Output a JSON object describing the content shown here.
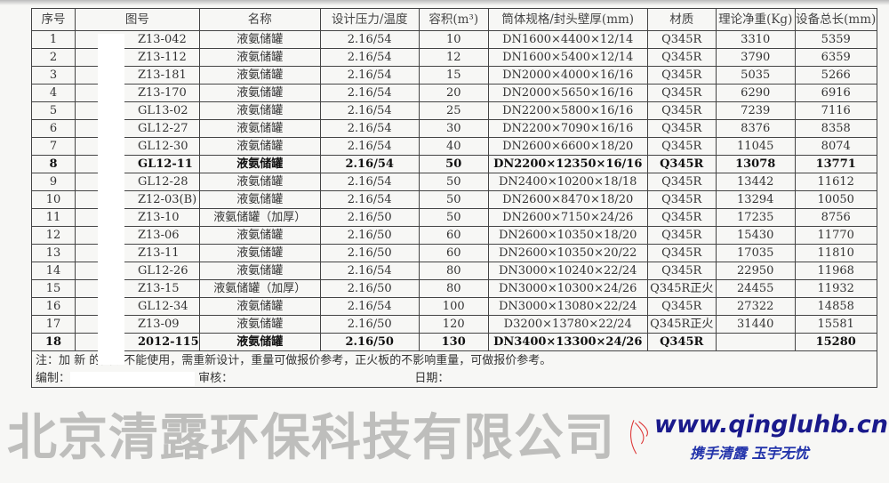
{
  "headers": [
    "序号",
    "图号",
    "名称",
    "设计压力/温度",
    "容积(m³)",
    "筒体规格/封头壁厚(mm)",
    "材质",
    "理论净重(Kg)",
    "设备总长(mm)"
  ],
  "rows": [
    [
      "1",
      "Z13-042",
      "液氨储罐",
      "2.16/54",
      "10",
      "DN1600×4400×12/14",
      "Q345R",
      "3310",
      "5359"
    ],
    [
      "2",
      "Z13-112",
      "液氨储罐",
      "2.16/54",
      "12",
      "DN1600×5400×12/14",
      "Q345R",
      "3790",
      "6359"
    ],
    [
      "3",
      "Z13-181",
      "液氨储罐",
      "2.16/54",
      "15",
      "DN2000×4000×16/16",
      "Q345R",
      "5035",
      "5266"
    ],
    [
      "4",
      "Z13-170",
      "液氨储罐",
      "2.16/54",
      "20",
      "DN2000×5650×16/16",
      "Q345R",
      "6290",
      "6916"
    ],
    [
      "5",
      "GL13-02",
      "液氨储罐",
      "2.16/54",
      "25",
      "DN2200×5800×16/16",
      "Q345R",
      "7239",
      "7116"
    ],
    [
      "6",
      "GL12-27",
      "液氨储罐",
      "2.16/54",
      "30",
      "DN2200×7090×16/16",
      "Q345R",
      "8376",
      "8358"
    ],
    [
      "7",
      "GL12-30",
      "液氨储罐",
      "2.16/54",
      "40",
      "DN2600×6600×18/20",
      "Q345R",
      "11045",
      "8074"
    ],
    [
      "8",
      "GL12-11",
      "液氨储罐",
      "2.16/54",
      "50",
      "DN2200×12350×16/16",
      "Q345R",
      "13078",
      "13771"
    ],
    [
      "9",
      "GL12-28",
      "液氨储罐",
      "2.16/54",
      "50",
      "DN2400×10200×18/18",
      "Q345R",
      "13442",
      "11612"
    ],
    [
      "10",
      "Z12-03(B)",
      "液氨储罐",
      "2.16/54",
      "50",
      "DN2600×8470×18/20",
      "Q345R",
      "13294",
      "10050"
    ],
    [
      "11",
      "Z13-10",
      "液氨储罐（加厚）",
      "2.16/50",
      "50",
      "DN2600×7150×24/26",
      "Q345R",
      "17235",
      "8756"
    ],
    [
      "12",
      "Z13-06",
      "液氨储罐",
      "2.16/50",
      "60",
      "DN2600×10350×18/20",
      "Q345R",
      "15430",
      "11770"
    ],
    [
      "13",
      "Z13-11",
      "液氨储罐",
      "2.16/50",
      "60",
      "DN2600×10350×20/22",
      "Q345R",
      "17035",
      "11810"
    ],
    [
      "14",
      "GL12-26",
      "液氨储罐",
      "2.16/54",
      "80",
      "DN3000×10240×22/24",
      "Q345R",
      "22950",
      "11968"
    ],
    [
      "15",
      "Z13-15",
      "液氨储罐（加厚）",
      "2.16/50",
      "80",
      "DN3000×10300×24/26",
      "Q345R正火",
      "24455",
      "11932"
    ],
    [
      "16",
      "GL12-34",
      "液氨储罐",
      "2.16/54",
      "100",
      "DN3000×13080×22/24",
      "Q345R",
      "27322",
      "14858"
    ],
    [
      "17",
      "Z13-09",
      "液氨储罐",
      "2.16/50",
      "120",
      "D3200×13780×22/24",
      "Q345R正火",
      "31440",
      "15581"
    ],
    [
      "18",
      "2012-115",
      "液氨储罐",
      "2.16/50",
      "130",
      "DN3400×13300×24/26",
      "Q345R",
      "",
      "15280"
    ]
  ],
  "note": "注：加  新  的图纸不能使用，需重新设计，重量可做报价参考，正火板的不影响重量，可做报价参考。",
  "sign": {
    "compiler": "编制：",
    "reviewer": "审核：",
    "date": "日期："
  },
  "watermark": "北京清露环保科技有限公司",
  "logo": {
    "url": "www.qingluhb.cn",
    "slogan": "携手清露 玉宇无忧",
    "color": "#1a1a8c"
  }
}
